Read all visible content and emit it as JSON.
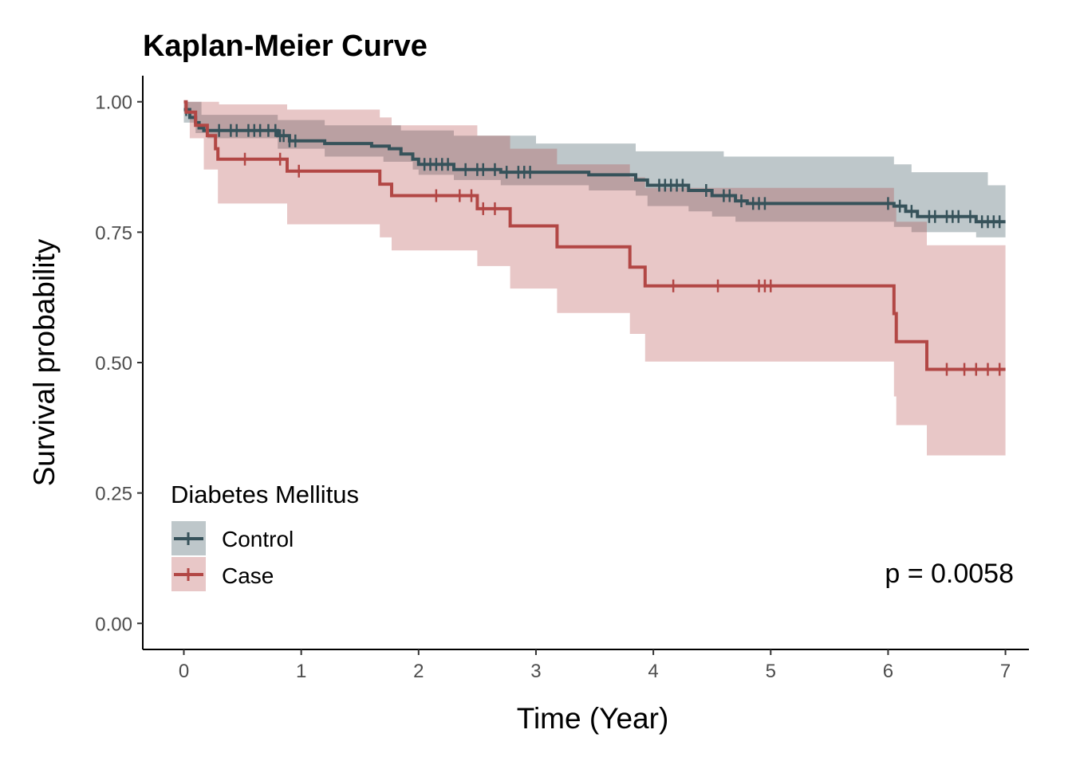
{
  "chart_data": {
    "type": "line",
    "title": "Kaplan-Meier Curve",
    "xlabel": "Time (Year)",
    "ylabel": "Survival probability",
    "xlim": [
      -0.35,
      7.2
    ],
    "ylim": [
      -0.05,
      1.05
    ],
    "x_ticks": [
      0,
      1,
      2,
      3,
      4,
      5,
      6,
      7
    ],
    "x_tick_labels": [
      "0",
      "1",
      "2",
      "3",
      "4",
      "5",
      "6",
      "7"
    ],
    "y_ticks": [
      0,
      0.25,
      0.5,
      0.75,
      1.0
    ],
    "y_tick_labels": [
      "0.00",
      "0.25",
      "0.50",
      "0.75",
      "1.00"
    ],
    "grid": false,
    "legend": {
      "title": "Diabetes Mellitus",
      "placement": "bottom-left"
    },
    "annotation": "p = 0.0058",
    "series": [
      {
        "name": "Control",
        "color": "#36525a",
        "band_color": "#36525a",
        "steps": [
          [
            0,
            0.985
          ],
          [
            0.05,
            0.97
          ],
          [
            0.1,
            0.96
          ],
          [
            0.13,
            0.95
          ],
          [
            0.17,
            0.945
          ],
          [
            0.8,
            0.935
          ],
          [
            0.9,
            0.925
          ],
          [
            1.2,
            0.92
          ],
          [
            1.6,
            0.915
          ],
          [
            1.75,
            0.91
          ],
          [
            1.85,
            0.9
          ],
          [
            1.95,
            0.89
          ],
          [
            2.0,
            0.88
          ],
          [
            2.3,
            0.87
          ],
          [
            2.7,
            0.865
          ],
          [
            3.45,
            0.86
          ],
          [
            3.85,
            0.85
          ],
          [
            3.95,
            0.84
          ],
          [
            4.3,
            0.83
          ],
          [
            4.5,
            0.82
          ],
          [
            4.7,
            0.81
          ],
          [
            4.8,
            0.805
          ],
          [
            6.05,
            0.8
          ],
          [
            6.15,
            0.79
          ],
          [
            6.25,
            0.78
          ],
          [
            6.75,
            0.77
          ],
          [
            7.0,
            0.77
          ]
        ],
        "lower": [
          [
            0,
            0.96
          ],
          [
            0.1,
            0.94
          ],
          [
            0.2,
            0.93
          ],
          [
            0.8,
            0.91
          ],
          [
            1.2,
            0.895
          ],
          [
            1.7,
            0.885
          ],
          [
            1.95,
            0.87
          ],
          [
            2.0,
            0.86
          ],
          [
            2.3,
            0.85
          ],
          [
            2.7,
            0.84
          ],
          [
            3.45,
            0.83
          ],
          [
            3.85,
            0.82
          ],
          [
            3.95,
            0.8
          ],
          [
            4.3,
            0.79
          ],
          [
            4.5,
            0.78
          ],
          [
            4.7,
            0.77
          ],
          [
            6.05,
            0.76
          ],
          [
            6.2,
            0.75
          ],
          [
            6.75,
            0.74
          ],
          [
            7.0,
            0.74
          ]
        ],
        "upper": [
          [
            0,
            1.0
          ],
          [
            0.15,
            0.975
          ],
          [
            0.8,
            0.965
          ],
          [
            1.2,
            0.955
          ],
          [
            1.85,
            0.945
          ],
          [
            2.3,
            0.935
          ],
          [
            3.0,
            0.92
          ],
          [
            3.85,
            0.905
          ],
          [
            4.6,
            0.895
          ],
          [
            6.05,
            0.88
          ],
          [
            6.2,
            0.865
          ],
          [
            6.85,
            0.84
          ],
          [
            7.0,
            0.84
          ]
        ],
        "censor_times": [
          0.02,
          0.2,
          0.3,
          0.4,
          0.45,
          0.55,
          0.6,
          0.65,
          0.72,
          0.78,
          0.82,
          0.85,
          0.9,
          0.95,
          2.05,
          2.1,
          2.15,
          2.2,
          2.25,
          2.4,
          2.5,
          2.55,
          2.65,
          2.75,
          2.85,
          2.9,
          2.95,
          4.05,
          4.1,
          4.15,
          4.2,
          4.25,
          4.45,
          4.6,
          4.65,
          4.75,
          4.85,
          4.9,
          4.95,
          6.0,
          6.1,
          6.2,
          6.35,
          6.4,
          6.5,
          6.55,
          6.6,
          6.7,
          6.8,
          6.85,
          6.9,
          6.95
        ]
      },
      {
        "name": "Case",
        "color": "#b24745",
        "band_color": "#b24745",
        "steps": [
          [
            0,
            1.0
          ],
          [
            0.02,
            0.98
          ],
          [
            0.1,
            0.955
          ],
          [
            0.2,
            0.935
          ],
          [
            0.27,
            0.91
          ],
          [
            0.29,
            0.89
          ],
          [
            0.88,
            0.867
          ],
          [
            1.67,
            0.842
          ],
          [
            1.77,
            0.82
          ],
          [
            2.5,
            0.795
          ],
          [
            2.78,
            0.762
          ],
          [
            3.18,
            0.722
          ],
          [
            3.8,
            0.683
          ],
          [
            3.93,
            0.647
          ],
          [
            6.05,
            0.594
          ],
          [
            6.07,
            0.54
          ],
          [
            6.33,
            0.487
          ],
          [
            7.0,
            0.487
          ]
        ],
        "lower": [
          [
            0,
            0.98
          ],
          [
            0.05,
            0.93
          ],
          [
            0.17,
            0.87
          ],
          [
            0.29,
            0.805
          ],
          [
            0.88,
            0.765
          ],
          [
            1.67,
            0.74
          ],
          [
            1.77,
            0.715
          ],
          [
            2.5,
            0.685
          ],
          [
            2.78,
            0.642
          ],
          [
            3.18,
            0.595
          ],
          [
            3.8,
            0.555
          ],
          [
            3.93,
            0.502
          ],
          [
            6.05,
            0.435
          ],
          [
            6.07,
            0.38
          ],
          [
            6.33,
            0.322
          ],
          [
            7.0,
            0.322
          ]
        ],
        "upper": [
          [
            0,
            1.0
          ],
          [
            0.3,
            0.995
          ],
          [
            0.88,
            0.985
          ],
          [
            1.67,
            0.97
          ],
          [
            1.77,
            0.955
          ],
          [
            2.5,
            0.935
          ],
          [
            2.78,
            0.91
          ],
          [
            3.18,
            0.88
          ],
          [
            3.8,
            0.855
          ],
          [
            3.93,
            0.835
          ],
          [
            6.05,
            0.8
          ],
          [
            6.07,
            0.77
          ],
          [
            6.33,
            0.725
          ],
          [
            7.0,
            0.725
          ]
        ],
        "censor_times": [
          0.52,
          0.82,
          0.98,
          2.15,
          2.35,
          2.45,
          2.55,
          2.65,
          4.17,
          4.55,
          4.9,
          4.95,
          5.0,
          6.5,
          6.65,
          6.75,
          6.85,
          6.95
        ]
      }
    ]
  }
}
